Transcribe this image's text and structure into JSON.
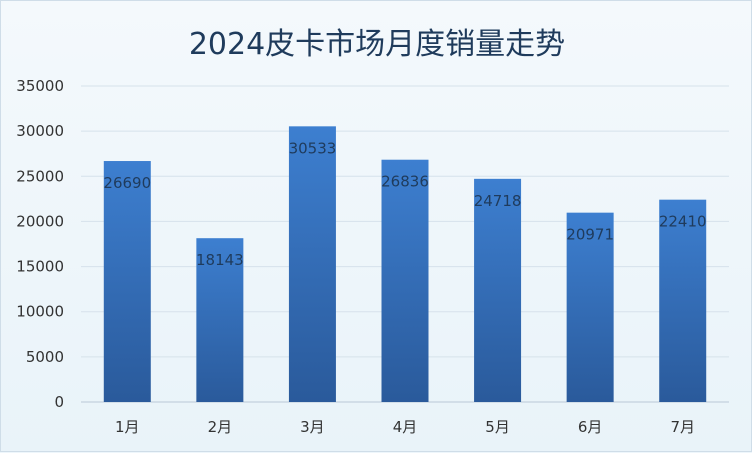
{
  "chart_data": {
    "type": "bar",
    "title": "2024皮卡市场月度销量走势",
    "categories": [
      "1月",
      "2月",
      "3月",
      "4月",
      "5月",
      "6月",
      "7月"
    ],
    "values": [
      26690,
      18143,
      30533,
      26836,
      24718,
      20971,
      22410
    ],
    "ylim": [
      0,
      35000
    ],
    "yticks": [
      0,
      5000,
      10000,
      15000,
      20000,
      25000,
      30000,
      35000
    ],
    "grid": true,
    "legend": "none",
    "bar_color_top": "#3d7fd0",
    "bar_color_bottom": "#2a5a9b"
  }
}
